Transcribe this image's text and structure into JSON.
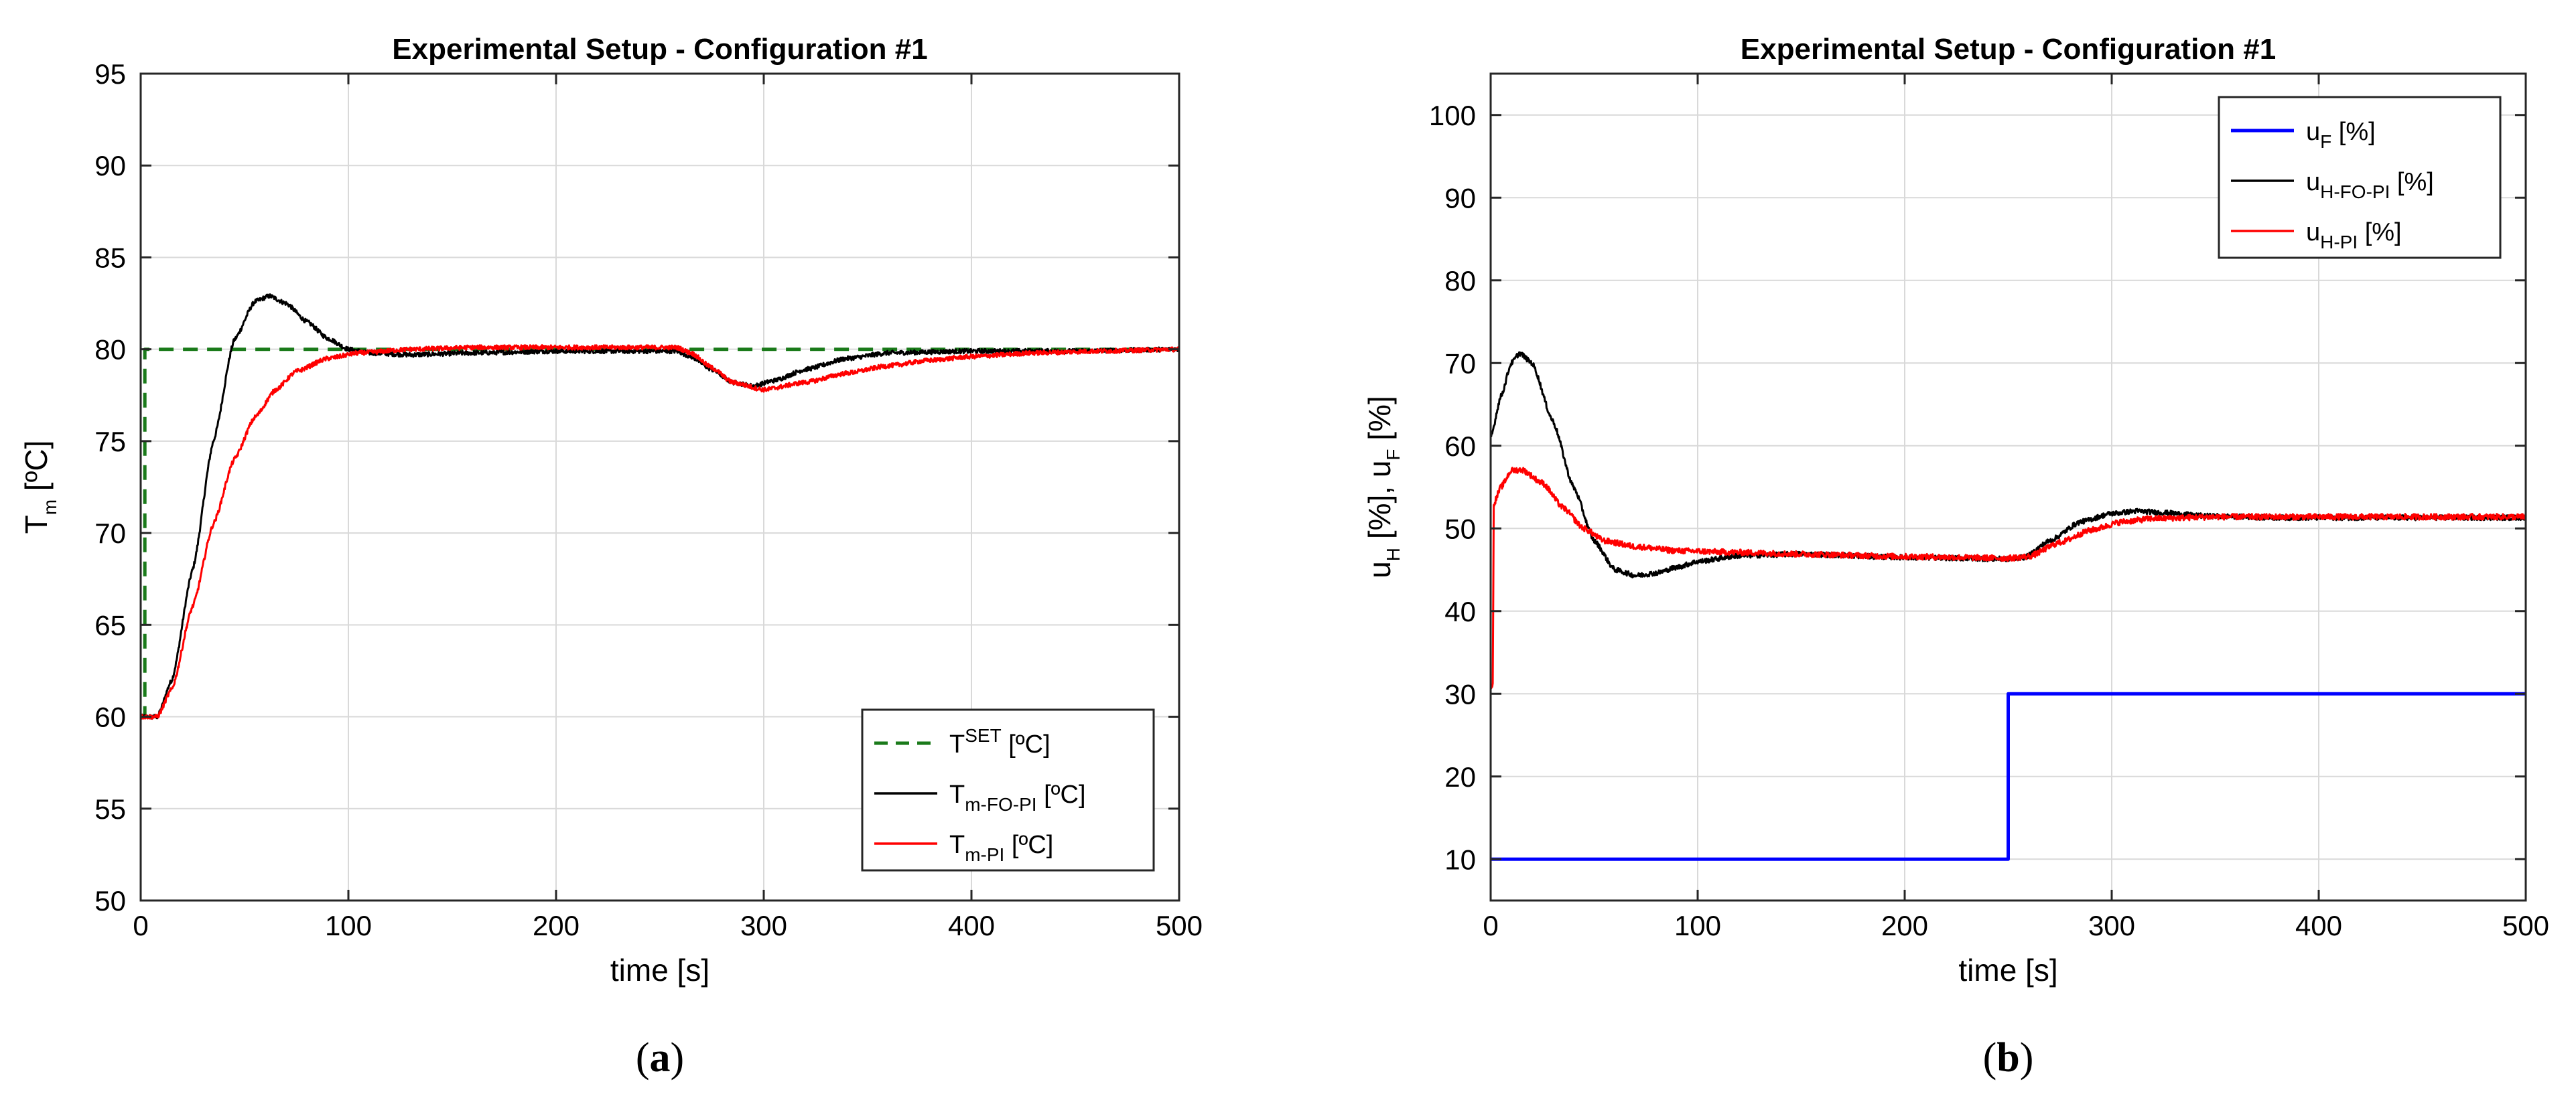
{
  "chart_data": [
    {
      "type": "line",
      "panel_label": "a",
      "title": "Experimental Setup - Configuration #1",
      "xlabel": "time [s]",
      "ylabel": {
        "main": "T",
        "sub": "m",
        "unit": " [ºC]"
      },
      "xlim": [
        0,
        500
      ],
      "ylim": [
        50,
        95
      ],
      "xticks": [
        0,
        100,
        200,
        300,
        400,
        500
      ],
      "yticks": [
        50,
        55,
        60,
        65,
        70,
        75,
        80,
        85,
        90,
        95
      ],
      "grid": true,
      "legend": {
        "position": "bottom-right",
        "entries": [
          {
            "main": "T",
            "sup": "SET",
            "sub": "",
            "unit": " [ºC]",
            "color": "#1a7a1a",
            "dash": true
          },
          {
            "main": "T",
            "sup": "",
            "sub": "m-FO-PI",
            "unit": " [ºC]",
            "color": "#000000",
            "dash": false
          },
          {
            "main": "T",
            "sup": "",
            "sub": "m-PI",
            "unit": " [ºC]",
            "color": "#ff0000",
            "dash": false
          }
        ]
      },
      "series": [
        {
          "name": "T^SET [ºC]",
          "color": "#1a7a1a",
          "dash": true,
          "noise": 0,
          "points": [
            [
              0,
              60
            ],
            [
              2,
              60
            ],
            [
              2,
              80
            ],
            [
              500,
              80
            ]
          ]
        },
        {
          "name": "T_m-FO-PI [ºC]",
          "color": "#000000",
          "dash": false,
          "noise": 0.12,
          "points": [
            [
              0,
              60
            ],
            [
              8,
              60
            ],
            [
              15,
              62
            ],
            [
              25,
              68
            ],
            [
              35,
              75
            ],
            [
              45,
              80.5
            ],
            [
              55,
              82.6
            ],
            [
              62,
              82.9
            ],
            [
              70,
              82.5
            ],
            [
              80,
              81.5
            ],
            [
              90,
              80.6
            ],
            [
              100,
              80
            ],
            [
              110,
              79.8
            ],
            [
              130,
              79.7
            ],
            [
              160,
              79.8
            ],
            [
              200,
              79.9
            ],
            [
              240,
              79.9
            ],
            [
              258,
              79.9
            ],
            [
              265,
              79.6
            ],
            [
              275,
              78.9
            ],
            [
              285,
              78.2
            ],
            [
              295,
              78.0
            ],
            [
              305,
              78.3
            ],
            [
              320,
              78.9
            ],
            [
              340,
              79.5
            ],
            [
              360,
              79.8
            ],
            [
              400,
              79.9
            ],
            [
              450,
              79.9
            ],
            [
              500,
              80
            ]
          ]
        },
        {
          "name": "T_m-PI [ºC]",
          "color": "#ff0000",
          "dash": false,
          "noise": 0.12,
          "points": [
            [
              0,
              60
            ],
            [
              8,
              60
            ],
            [
              15,
              61.5
            ],
            [
              25,
              66
            ],
            [
              35,
              70.5
            ],
            [
              45,
              74
            ],
            [
              55,
              76.3
            ],
            [
              65,
              77.8
            ],
            [
              75,
              78.8
            ],
            [
              90,
              79.5
            ],
            [
              105,
              79.8
            ],
            [
              130,
              80.0
            ],
            [
              160,
              80.1
            ],
            [
              200,
              80.1
            ],
            [
              240,
              80.1
            ],
            [
              258,
              80.1
            ],
            [
              265,
              79.8
            ],
            [
              275,
              79.0
            ],
            [
              285,
              78.2
            ],
            [
              300,
              77.8
            ],
            [
              320,
              78.2
            ],
            [
              340,
              78.7
            ],
            [
              360,
              79.1
            ],
            [
              380,
              79.4
            ],
            [
              400,
              79.6
            ],
            [
              430,
              79.8
            ],
            [
              460,
              79.9
            ],
            [
              500,
              80
            ]
          ]
        }
      ]
    },
    {
      "type": "line",
      "panel_label": "b",
      "title": "Experimental Setup - Configuration #1",
      "xlabel": "time [s]",
      "ylabel": {
        "main1": "u",
        "sub1": "H",
        "mid": " [%], u",
        "sub2": "F",
        "unit": " [%]"
      },
      "xlim": [
        0,
        500
      ],
      "ylim": [
        5,
        105
      ],
      "xticks": [
        0,
        100,
        200,
        300,
        400,
        500
      ],
      "yticks": [
        10,
        20,
        30,
        40,
        50,
        60,
        70,
        80,
        90,
        100
      ],
      "grid": true,
      "legend": {
        "position": "top-right",
        "entries": [
          {
            "main": "u",
            "sup": "",
            "sub": "F",
            "unit": " [%]",
            "color": "#0000ff",
            "dash": false
          },
          {
            "main": "u",
            "sup": "",
            "sub": "H-FO-PI",
            "unit": " [%]",
            "color": "#000000",
            "dash": false
          },
          {
            "main": "u",
            "sup": "",
            "sub": "H-PI",
            "unit": " [%]",
            "color": "#ff0000",
            "dash": false
          }
        ]
      },
      "series": [
        {
          "name": "u_F [%]",
          "color": "#0000ff",
          "dash": false,
          "noise": 0,
          "points": [
            [
              0,
              10
            ],
            [
              250,
              10
            ],
            [
              250,
              30
            ],
            [
              500,
              30
            ]
          ]
        },
        {
          "name": "u_H-FO-PI [%]",
          "color": "#000000",
          "dash": false,
          "noise": 0.3,
          "points": [
            [
              0,
              61
            ],
            [
              5,
              66
            ],
            [
              10,
              70
            ],
            [
              14,
              71.2
            ],
            [
              20,
              70
            ],
            [
              30,
              63
            ],
            [
              40,
              55
            ],
            [
              50,
              48.5
            ],
            [
              60,
              45
            ],
            [
              70,
              44.3
            ],
            [
              80,
              44.6
            ],
            [
              90,
              45.3
            ],
            [
              100,
              46
            ],
            [
              120,
              46.7
            ],
            [
              150,
              46.9
            ],
            [
              200,
              46.5
            ],
            [
              250,
              46.3
            ],
            [
              258,
              46.5
            ],
            [
              270,
              48.5
            ],
            [
              285,
              50.8
            ],
            [
              300,
              51.8
            ],
            [
              312,
              52.1
            ],
            [
              325,
              51.9
            ],
            [
              345,
              51.5
            ],
            [
              380,
              51.3
            ],
            [
              450,
              51.3
            ],
            [
              500,
              51.3
            ]
          ]
        },
        {
          "name": "u_H-PI [%]",
          "color": "#ff0000",
          "dash": false,
          "noise": 0.35,
          "points": [
            [
              0,
              31
            ],
            [
              1,
              31
            ],
            [
              1.5,
              53
            ],
            [
              5,
              55
            ],
            [
              10,
              57
            ],
            [
              15,
              57.1
            ],
            [
              25,
              55.5
            ],
            [
              35,
              52.5
            ],
            [
              45,
              50
            ],
            [
              55,
              48.5
            ],
            [
              70,
              47.8
            ],
            [
              90,
              47.3
            ],
            [
              120,
              47.1
            ],
            [
              150,
              46.9
            ],
            [
              200,
              46.6
            ],
            [
              250,
              46.4
            ],
            [
              260,
              46.6
            ],
            [
              275,
              48.3
            ],
            [
              290,
              49.8
            ],
            [
              305,
              50.8
            ],
            [
              320,
              51.2
            ],
            [
              350,
              51.4
            ],
            [
              400,
              51.4
            ],
            [
              500,
              51.4
            ]
          ]
        }
      ]
    }
  ]
}
